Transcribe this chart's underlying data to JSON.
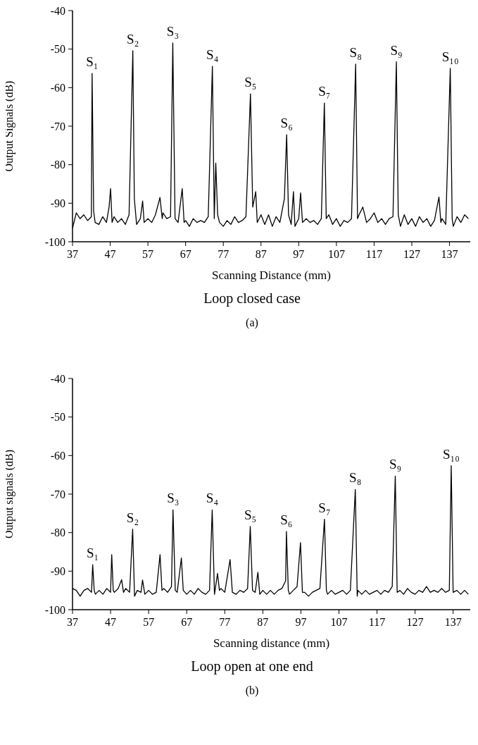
{
  "chart_data": [
    {
      "type": "line",
      "xlabel": "Scanning Distance (mm)",
      "ylabel": "Output Signals (dB)",
      "xlim": [
        37,
        142.5
      ],
      "ylim": [
        -100,
        -40
      ],
      "xticks": [
        37,
        47,
        57,
        67,
        77,
        87,
        97,
        107,
        117,
        127,
        137
      ],
      "yticks": [
        -100,
        -90,
        -80,
        -70,
        -60,
        -50,
        -40
      ],
      "marker": "none",
      "line_style": "solid",
      "series": [
        {
          "color": "#000000",
          "x": [
            37,
            38,
            39,
            40,
            41,
            42,
            42.2,
            42.6,
            43,
            44,
            45,
            46,
            46.7,
            47.1,
            47.5,
            48,
            49,
            50,
            51,
            52,
            53.0,
            53.4,
            54,
            55,
            55.6,
            56,
            57,
            58,
            59,
            60.2,
            60.8,
            61,
            62,
            63,
            63.6,
            64.2,
            65,
            66.1,
            66.6,
            67,
            68,
            69,
            70,
            71,
            72,
            73,
            74.1,
            74.6,
            75.0,
            75.5,
            76,
            77,
            78,
            79,
            80,
            81,
            82,
            83,
            84.2,
            84.8,
            85.6,
            86,
            87,
            88,
            89,
            90,
            91,
            92,
            93.2,
            93.8,
            94.3,
            95,
            95.6,
            96,
            97,
            97.5,
            98,
            99,
            100,
            101,
            102,
            103,
            103.8,
            104.3,
            105,
            106,
            107,
            108,
            109,
            110,
            111,
            112.1,
            112.6,
            113,
            114,
            115,
            116,
            117,
            118,
            119,
            120,
            121,
            122,
            122.9,
            123.4,
            124,
            125,
            126,
            127,
            128,
            129,
            130,
            131,
            132,
            133,
            134.2,
            134.7,
            135,
            136,
            137.2,
            137.7,
            138,
            139,
            140,
            141,
            142
          ],
          "values": [
            -96.5,
            -92.5,
            -94,
            -93,
            -94.5,
            -93.5,
            -56.3,
            -92,
            -95,
            -95.5,
            -93.5,
            -95,
            -91,
            -86.2,
            -95,
            -93.5,
            -95,
            -94,
            -95.5,
            -93,
            -50.4,
            -88.8,
            -95.5,
            -94,
            -89.4,
            -95,
            -94,
            -95,
            -93,
            -88.5,
            -94,
            -92.5,
            -94,
            -93.5,
            -48.4,
            -94,
            -95,
            -86.2,
            -95,
            -94.5,
            -96,
            -94,
            -95,
            -94.5,
            -95,
            -93.5,
            -54.5,
            -94,
            -79.6,
            -93,
            -95,
            -96,
            -94.5,
            -95.5,
            -93.5,
            -95,
            -94.5,
            -93.5,
            -61.6,
            -91,
            -87,
            -95,
            -93,
            -95.5,
            -93,
            -96,
            -93.5,
            -95,
            -88.8,
            -72.2,
            -93,
            -95.5,
            -87,
            -96,
            -94,
            -87.3,
            -95,
            -94,
            -95,
            -94.5,
            -95.5,
            -94,
            -64,
            -94,
            -93,
            -95.5,
            -94,
            -96,
            -94.5,
            -95,
            -94,
            -53.9,
            -94,
            -93,
            -91,
            -95,
            -94,
            -92.5,
            -95,
            -94,
            -95.5,
            -94,
            -93.5,
            -53.3,
            -93,
            -96,
            -93,
            -95.5,
            -94,
            -96,
            -93.5,
            -95,
            -94,
            -96,
            -94.5,
            -88.4,
            -95,
            -94,
            -95.5,
            -55,
            -94,
            -96,
            -93.5,
            -95,
            -93,
            -94
          ]
        }
      ],
      "annotations": [
        {
          "text": "S₁",
          "x": 42.2,
          "y": -56.3
        },
        {
          "text": "S₂",
          "x": 53.0,
          "y": -50.4
        },
        {
          "text": "S₃",
          "x": 63.6,
          "y": -48.4
        },
        {
          "text": "S₄",
          "x": 74.1,
          "y": -54.5
        },
        {
          "text": "S₅",
          "x": 84.2,
          "y": -61.6
        },
        {
          "text": "S₆",
          "x": 93.8,
          "y": -72.2
        },
        {
          "text": "S₇",
          "x": 103.8,
          "y": -64
        },
        {
          "text": "S₈",
          "x": 112.1,
          "y": -53.9
        },
        {
          "text": "S₉",
          "x": 122.9,
          "y": -53.3
        },
        {
          "text": "S₁₀",
          "x": 137.2,
          "y": -55
        },
        "Loop closed case",
        "(a)"
      ]
    },
    {
      "type": "line",
      "xlabel": "Scanning distance (mm)",
      "ylabel": "Output signals (dB)",
      "xlim": [
        37,
        141.5
      ],
      "ylim": [
        -100,
        -40
      ],
      "xticks": [
        37,
        47,
        57,
        67,
        77,
        87,
        97,
        107,
        117,
        127,
        137
      ],
      "yticks": [
        -100,
        -90,
        -80,
        -70,
        -60,
        -50,
        -40
      ],
      "marker": "none",
      "line_style": "solid",
      "series": [
        {
          "color": "#000000",
          "x": [
            37,
            38,
            39,
            40,
            41,
            42,
            42.3,
            42.7,
            43,
            44,
            45,
            46,
            47,
            47.3,
            47.7,
            48,
            49,
            49.9,
            50.4,
            51,
            52,
            52.8,
            53.3,
            54,
            55,
            55.4,
            56,
            57,
            58,
            59,
            60.0,
            60.5,
            61,
            62,
            63,
            63.4,
            64,
            64.5,
            65.6,
            66.1,
            67,
            68,
            69,
            70,
            71,
            72,
            73,
            73.7,
            74.3,
            75.1,
            75.6,
            76,
            77,
            78.4,
            79,
            80,
            81,
            82,
            83,
            83.7,
            84.3,
            85,
            85.7,
            86.2,
            87,
            88,
            89,
            90,
            91,
            92,
            93.0,
            93.2,
            93.7,
            94,
            95,
            96,
            96.9,
            97.4,
            98,
            99,
            100,
            101,
            102,
            103.2,
            103.7,
            104,
            105,
            106,
            107,
            108,
            109,
            110,
            111.3,
            111.8,
            112,
            113,
            114,
            115,
            116,
            117,
            118,
            119,
            120,
            121,
            121.8,
            122.3,
            123,
            124,
            125,
            126,
            127,
            128,
            129,
            130,
            131,
            132,
            133,
            134,
            135,
            136,
            136.5,
            137,
            138,
            139,
            140,
            141
          ],
          "values": [
            -94.5,
            -95,
            -96.5,
            -95,
            -94.5,
            -95.5,
            -88.3,
            -95,
            -96,
            -95,
            -96,
            -94.5,
            -95.5,
            -85.7,
            -95,
            -95.5,
            -94.5,
            -92.2,
            -95.5,
            -94.5,
            -95.5,
            -79.1,
            -96.5,
            -95,
            -95.5,
            -92.3,
            -96,
            -95,
            -96,
            -95.5,
            -85.7,
            -95,
            -94.5,
            -95.5,
            -94,
            -74.1,
            -95,
            -95.5,
            -86.6,
            -95,
            -96,
            -95,
            -96,
            -94.5,
            -95.5,
            -96,
            -95,
            -74.1,
            -96,
            -90.6,
            -95,
            -94.5,
            -95.5,
            -87,
            -95.5,
            -96,
            -95,
            -95.5,
            -94.5,
            -78.4,
            -95,
            -95.5,
            -90.3,
            -96,
            -95,
            -96,
            -95,
            -96,
            -95,
            -94.5,
            -92.5,
            -79.7,
            -95,
            -96,
            -95,
            -94,
            -82.6,
            -95.5,
            -95.5,
            -96.5,
            -95.5,
            -95,
            -94.5,
            -76.5,
            -95,
            -96,
            -95,
            -96,
            -95.5,
            -95,
            -96,
            -95,
            -68.8,
            -96.5,
            -95,
            -96,
            -95,
            -96,
            -95.5,
            -95,
            -96,
            -95,
            -95.5,
            -94,
            -65.3,
            -95.5,
            -95,
            -96,
            -94.5,
            -95.5,
            -96,
            -95,
            -95.5,
            -94,
            -95.5,
            -95,
            -95.5,
            -94.5,
            -95.5,
            -95,
            -62.6,
            -95.5,
            -95,
            -96,
            -95,
            -96
          ]
        }
      ],
      "annotations": [
        {
          "text": "S₁",
          "x": 42.3,
          "y": -88.3
        },
        {
          "text": "S₂",
          "x": 52.8,
          "y": -79.1
        },
        {
          "text": "S₃",
          "x": 63.4,
          "y": -74.1
        },
        {
          "text": "S₄",
          "x": 73.7,
          "y": -74.1
        },
        {
          "text": "S₅",
          "x": 83.7,
          "y": -78.4
        },
        {
          "text": "S₆",
          "x": 93.2,
          "y": -79.7
        },
        {
          "text": "S₇",
          "x": 103.2,
          "y": -76.5
        },
        {
          "text": "S₈",
          "x": 111.3,
          "y": -68.8
        },
        {
          "text": "S₉",
          "x": 121.8,
          "y": -65.3
        },
        {
          "text": "S₁₀",
          "x": 136.5,
          "y": -62.6
        },
        "Loop open at one end",
        "(b)"
      ]
    }
  ]
}
